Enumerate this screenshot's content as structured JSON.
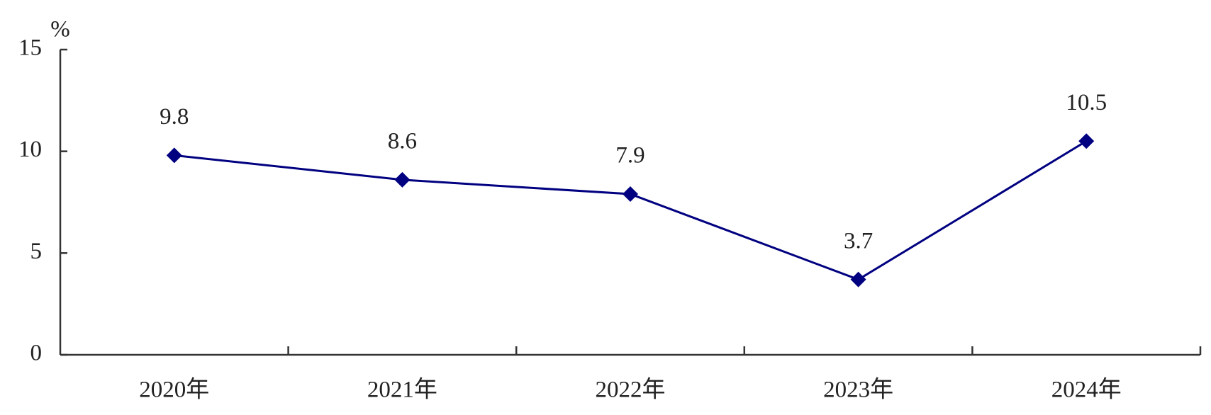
{
  "chart_data": {
    "type": "line",
    "y_label": "%",
    "categories": [
      "2020年",
      "2021年",
      "2022年",
      "2023年",
      "2024年"
    ],
    "values": [
      9.8,
      8.6,
      7.9,
      3.7,
      10.5
    ],
    "color": "#000080",
    "ylim": [
      0,
      15
    ],
    "yticks": [
      0,
      5,
      10,
      15
    ],
    "grid": false
  }
}
